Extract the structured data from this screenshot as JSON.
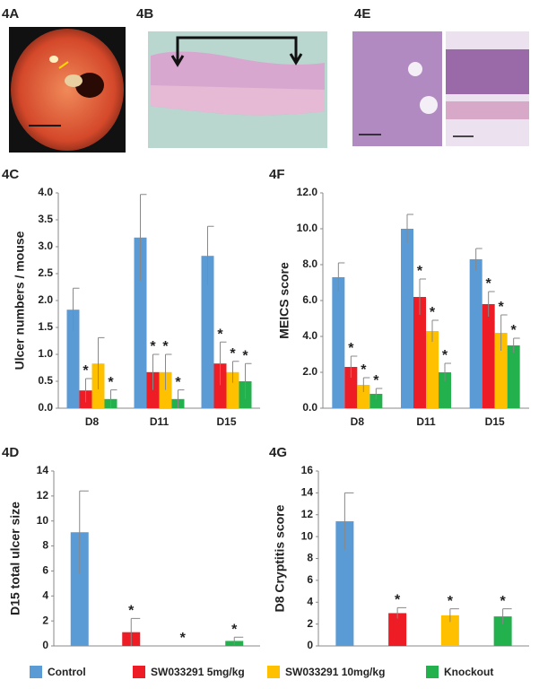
{
  "panels": [
    {
      "label": "4A"
    },
    {
      "label": "4B"
    },
    {
      "label": "4E"
    }
  ],
  "legend": [
    {
      "name": "Control",
      "color": "#5b9bd5"
    },
    {
      "name": "SW033291 5mg/kg",
      "color": "#ee1c25"
    },
    {
      "name": "SW033291 10mg/kg",
      "color": "#ffc000"
    },
    {
      "name": "Knockout",
      "color": "#22b14c"
    }
  ],
  "chart_data": [
    {
      "type": "bar",
      "panel": "4C",
      "ylabel": "Ulcer numbers / mouse",
      "categories": [
        "D8",
        "D11",
        "D15"
      ],
      "ylim": [
        0,
        4
      ],
      "yticks": [
        {
          "value": 0,
          "label": "0.0"
        },
        0.5,
        {
          "value": 1,
          "label": "1.0"
        },
        1.5,
        {
          "value": 2,
          "label": "2.0"
        },
        2.5,
        {
          "value": 3,
          "label": "3.0"
        },
        3.5,
        {
          "value": 4,
          "label": "4.0"
        }
      ],
      "series": [
        {
          "values": [
            1.83,
            3.17,
            2.83
          ],
          "errors": [
            0.4,
            0.8,
            0.55
          ],
          "significance": [
            null,
            null,
            null
          ]
        },
        {
          "values": [
            0.33,
            0.67,
            0.83
          ],
          "errors": [
            0.22,
            0.33,
            0.4
          ],
          "significance": [
            "*",
            "*",
            "*"
          ]
        },
        {
          "values": [
            0.83,
            0.67,
            0.67
          ],
          "errors": [
            0.48,
            0.33,
            0.2
          ],
          "significance": [
            null,
            "*",
            "*"
          ]
        },
        {
          "values": [
            0.17,
            0.17,
            0.5
          ],
          "errors": [
            0.17,
            0.17,
            0.33
          ],
          "significance": [
            "*",
            "*",
            "*"
          ]
        }
      ]
    },
    {
      "type": "bar",
      "panel": "4F",
      "ylabel": "MEICS score",
      "categories": [
        "D8",
        "D11",
        "D15"
      ],
      "ylim": [
        0,
        12
      ],
      "yticks": [
        {
          "value": 0,
          "label": "0.0"
        },
        {
          "value": 2,
          "label": "2.0"
        },
        {
          "value": 4,
          "label": "4.0"
        },
        {
          "value": 6,
          "label": "6.0"
        },
        {
          "value": 8,
          "label": "8.0"
        },
        {
          "value": 10,
          "label": "10.0"
        },
        {
          "value": 12,
          "label": "12.0"
        }
      ],
      "series": [
        {
          "values": [
            7.3,
            10.0,
            8.3
          ],
          "errors": [
            0.8,
            0.8,
            0.6
          ],
          "significance": [
            null,
            null,
            null
          ]
        },
        {
          "values": [
            2.3,
            6.2,
            5.8
          ],
          "errors": [
            0.6,
            1.0,
            0.7
          ],
          "significance": [
            "*",
            "*",
            "*"
          ]
        },
        {
          "values": [
            1.3,
            4.3,
            4.2
          ],
          "errors": [
            0.4,
            0.6,
            1.0
          ],
          "significance": [
            "*",
            "*",
            "*"
          ]
        },
        {
          "values": [
            0.8,
            2.0,
            3.5
          ],
          "errors": [
            0.3,
            0.5,
            0.4
          ],
          "significance": [
            "*",
            "*",
            "*"
          ]
        }
      ]
    },
    {
      "type": "bar",
      "panel": "4D",
      "ylabel": "D15 total ulcer size",
      "categories": [
        null
      ],
      "ylim": [
        0,
        14
      ],
      "yticks": [
        0,
        2,
        4,
        6,
        8,
        10,
        12,
        14
      ],
      "series": [
        {
          "values": [
            9.1
          ],
          "errors": [
            3.3
          ],
          "significance": [
            null
          ]
        },
        {
          "values": [
            1.1
          ],
          "errors": [
            1.1
          ],
          "significance": [
            "*"
          ]
        },
        {
          "values": [
            0
          ],
          "errors": [
            0
          ],
          "significance": [
            "*"
          ]
        },
        {
          "values": [
            0.4
          ],
          "errors": [
            0.3
          ],
          "significance": [
            "*"
          ]
        }
      ]
    },
    {
      "type": "bar",
      "panel": "4G",
      "ylabel": "D8 Cryptitis score",
      "categories": [
        null
      ],
      "ylim": [
        0,
        16
      ],
      "yticks": [
        0,
        2,
        4,
        6,
        8,
        10,
        12,
        14,
        16
      ],
      "series": [
        {
          "values": [
            11.4
          ],
          "errors": [
            2.6
          ],
          "significance": [
            null
          ]
        },
        {
          "values": [
            3.0
          ],
          "errors": [
            0.5
          ],
          "significance": [
            "*"
          ]
        },
        {
          "values": [
            2.8
          ],
          "errors": [
            0.6
          ],
          "significance": [
            "*"
          ]
        },
        {
          "values": [
            2.7
          ],
          "errors": [
            0.7
          ],
          "significance": [
            "*"
          ]
        }
      ]
    }
  ]
}
